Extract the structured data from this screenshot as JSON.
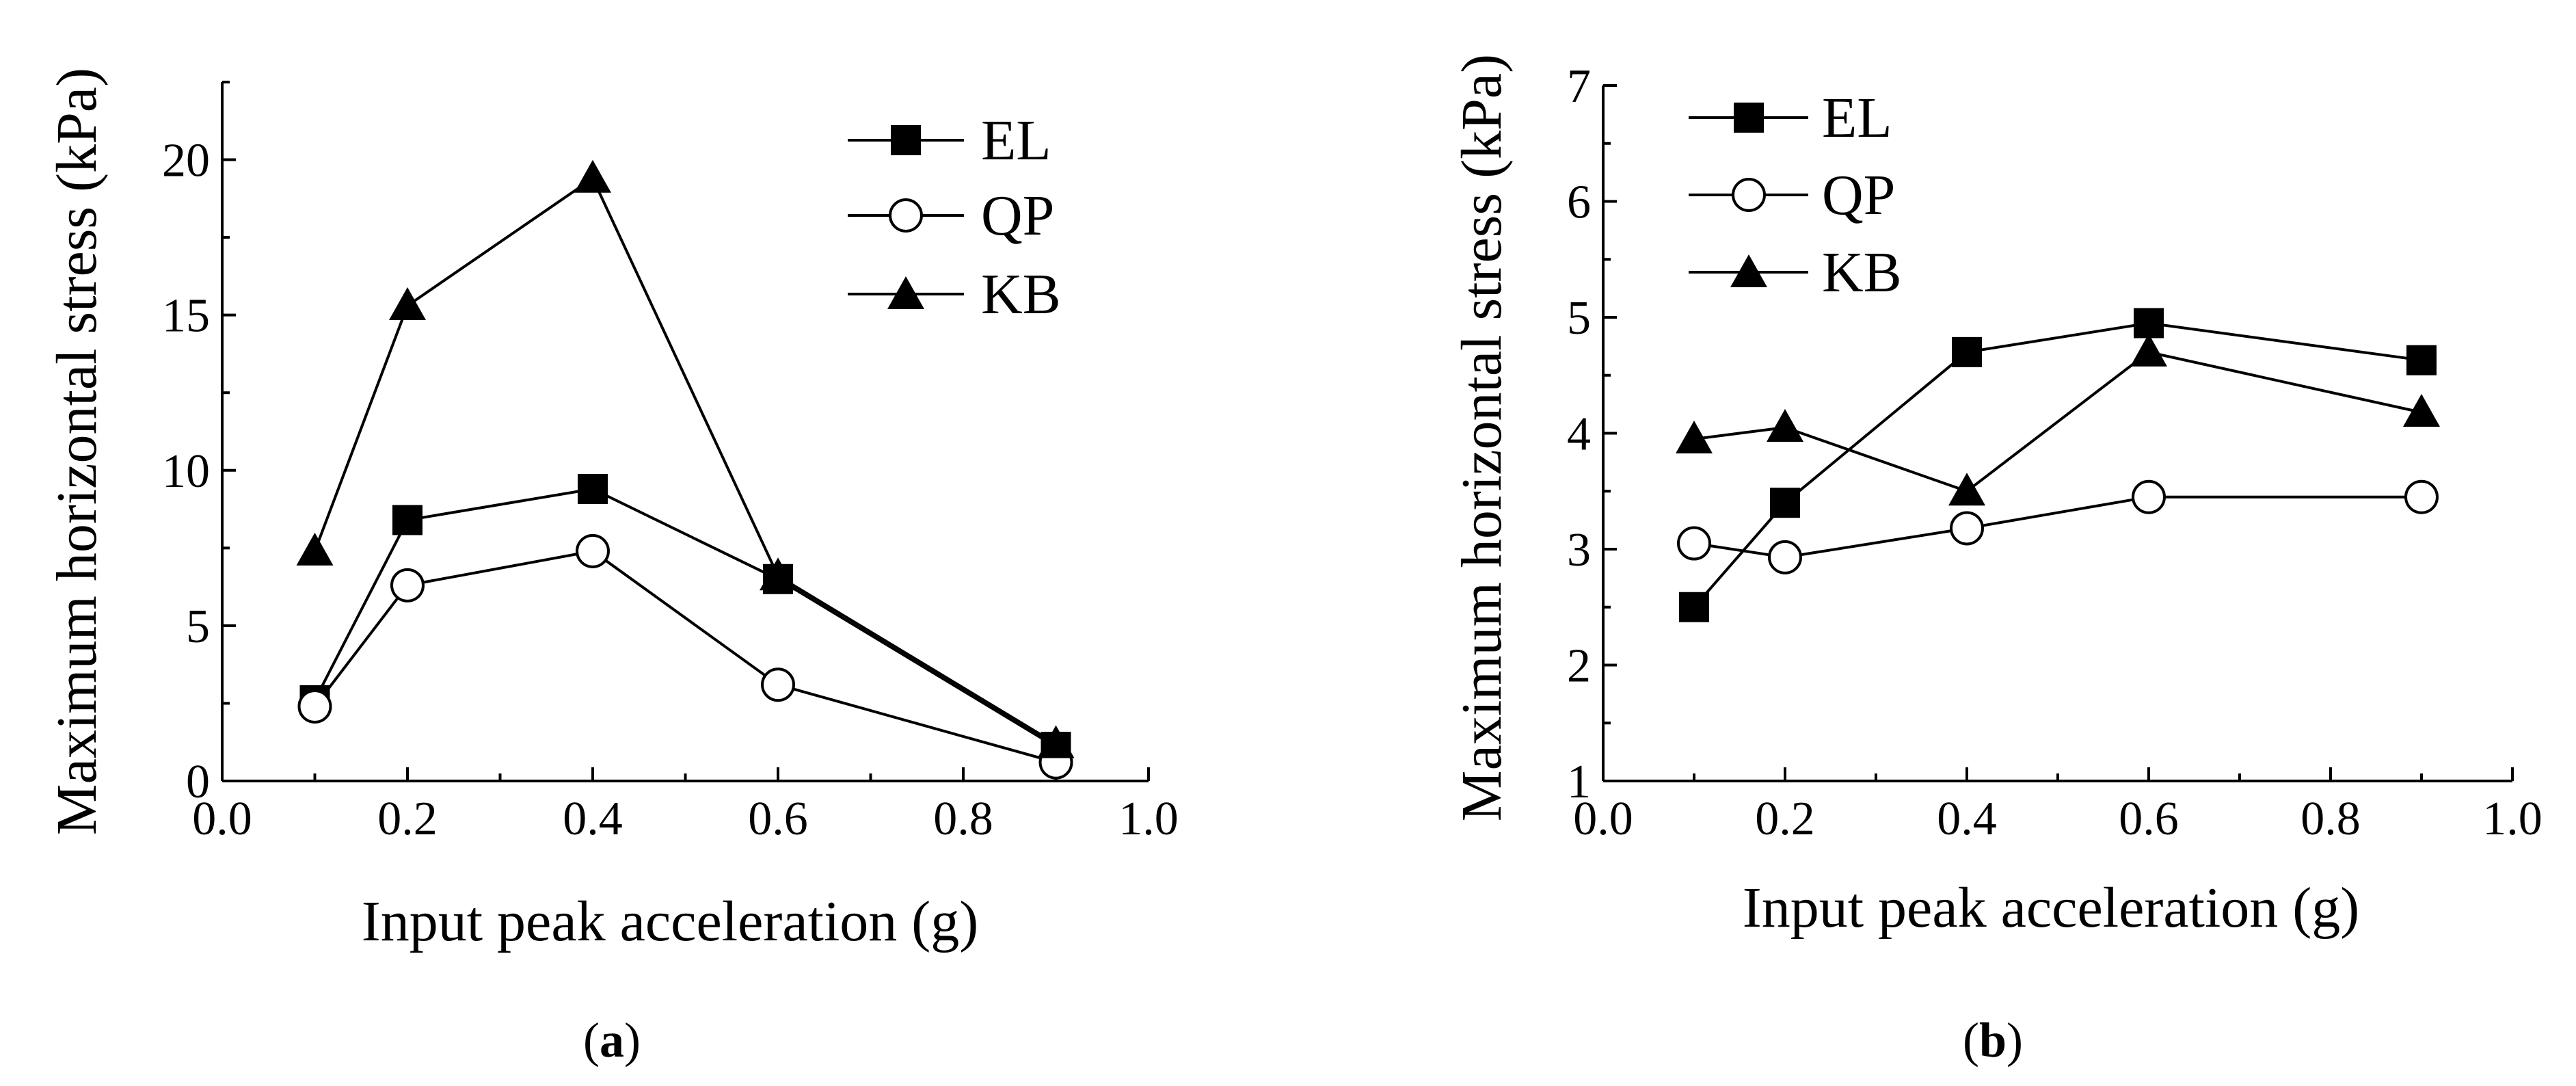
{
  "chart_data": [
    {
      "type": "line",
      "panel_label": "a",
      "xlabel": "Input peak acceleration (g)",
      "ylabel": "Maximum horizontal stress (kPa)",
      "xlim": [
        0.0,
        1.0
      ],
      "ylim": [
        0,
        22.5
      ],
      "xticks": [
        "0.0",
        "0.2",
        "0.4",
        "0.6",
        "0.8",
        "1.0"
      ],
      "yticks": [
        "0",
        "5",
        "10",
        "15",
        "20"
      ],
      "legend_position": "top-right",
      "x": [
        0.1,
        0.2,
        0.4,
        0.6,
        0.9
      ],
      "series": [
        {
          "name": "EL",
          "marker": "square-filled",
          "values": [
            2.6,
            8.4,
            9.4,
            6.5,
            1.1
          ]
        },
        {
          "name": "QP",
          "marker": "circle-open",
          "values": [
            2.4,
            6.3,
            7.4,
            3.1,
            0.6
          ]
        },
        {
          "name": "KB",
          "marker": "triangle-filled",
          "values": [
            7.4,
            15.3,
            19.4,
            6.6,
            1.2
          ]
        }
      ]
    },
    {
      "type": "line",
      "panel_label": "b",
      "xlabel": "Input peak acceleration (g)",
      "ylabel": "Maximum horizontal stress (kPa)",
      "xlim": [
        0.0,
        1.0
      ],
      "ylim": [
        1,
        7
      ],
      "xticks": [
        "0.0",
        "0.2",
        "0.4",
        "0.6",
        "0.8",
        "1.0"
      ],
      "yticks": [
        "1",
        "2",
        "3",
        "4",
        "5",
        "6",
        "7"
      ],
      "legend_position": "top-left",
      "x": [
        0.1,
        0.2,
        0.4,
        0.6,
        0.9
      ],
      "series": [
        {
          "name": "EL",
          "marker": "square-filled",
          "values": [
            2.5,
            3.4,
            4.7,
            4.95,
            4.63
          ]
        },
        {
          "name": "QP",
          "marker": "circle-open",
          "values": [
            3.05,
            2.93,
            3.18,
            3.45,
            3.45
          ]
        },
        {
          "name": "KB",
          "marker": "triangle-filled",
          "values": [
            3.95,
            4.05,
            3.5,
            4.7,
            4.18
          ]
        }
      ]
    }
  ]
}
